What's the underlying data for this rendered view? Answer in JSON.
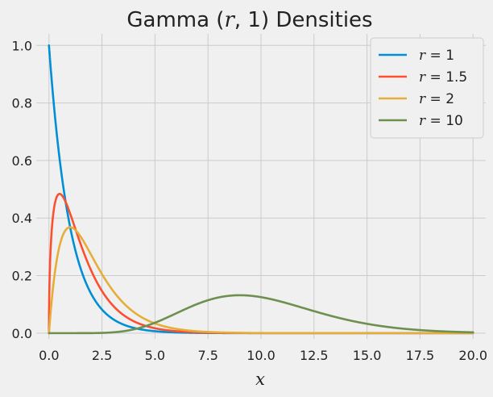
{
  "chart_data": {
    "type": "line",
    "title": "Gamma (r, 1) Densities",
    "title_parts": [
      "Gamma (",
      "r",
      ", 1) Densities"
    ],
    "xlabel": "x",
    "ylabel": "",
    "xlim": [
      -0.6,
      20.6
    ],
    "ylim": [
      -0.02,
      1.04
    ],
    "xticks": [
      0.0,
      2.5,
      5.0,
      7.5,
      10.0,
      12.5,
      15.0,
      17.5,
      20.0
    ],
    "xtick_labels": [
      "0.0",
      "2.5",
      "5.0",
      "7.5",
      "10.0",
      "12.5",
      "15.0",
      "17.5",
      "20.0"
    ],
    "yticks": [
      0.0,
      0.2,
      0.4,
      0.6,
      0.8,
      1.0
    ],
    "ytick_labels": [
      "0.0",
      "0.2",
      "0.4",
      "0.6",
      "0.8",
      "1.0"
    ],
    "grid": true,
    "legend_position": "top-right",
    "series": [
      {
        "name": "r = 1",
        "r_label": "r",
        "eq_label": " = 1",
        "shape": 1,
        "color": "#008fd5",
        "x": [
          0,
          0.25,
          0.5,
          0.75,
          1,
          1.5,
          2,
          2.5,
          3,
          4,
          5,
          6,
          7,
          8,
          10,
          12,
          15,
          20
        ],
        "y": [
          1.0,
          0.779,
          0.607,
          0.472,
          0.368,
          0.223,
          0.135,
          0.082,
          0.05,
          0.018,
          0.007,
          0.002,
          0.001,
          0.0,
          0.0,
          0.0,
          0.0,
          0.0
        ]
      },
      {
        "name": "r = 1.5",
        "r_label": "r",
        "eq_label": " = 1.5",
        "shape": 1.5,
        "color": "#fc4f30",
        "x": [
          0,
          0.02,
          0.05,
          0.1,
          0.2,
          0.3,
          0.5,
          0.75,
          1,
          1.5,
          2,
          2.5,
          3,
          4,
          5,
          6,
          7,
          8,
          10,
          12,
          15,
          20
        ],
        "y": [
          0.0,
          0.157,
          0.24,
          0.325,
          0.413,
          0.458,
          0.484,
          0.463,
          0.415,
          0.309,
          0.216,
          0.145,
          0.094,
          0.041,
          0.017,
          0.007,
          0.003,
          0.001,
          0.0,
          0.0,
          0.0,
          0.0
        ]
      },
      {
        "name": "r = 2",
        "r_label": "r",
        "eq_label": " = 2",
        "shape": 2,
        "color": "#e5ae38",
        "x": [
          0,
          0.1,
          0.25,
          0.5,
          0.75,
          1,
          1.5,
          2,
          2.5,
          3,
          4,
          5,
          6,
          7,
          8,
          10,
          12,
          15,
          20
        ],
        "y": [
          0.0,
          0.09,
          0.195,
          0.303,
          0.354,
          0.368,
          0.335,
          0.271,
          0.205,
          0.149,
          0.073,
          0.034,
          0.015,
          0.006,
          0.003,
          0.0,
          0.0,
          0.0,
          0.0
        ]
      },
      {
        "name": "r = 10",
        "r_label": "r",
        "eq_label": " = 10",
        "shape": 10,
        "color": "#6d904f",
        "x": [
          0,
          1,
          2,
          3,
          4,
          5,
          6,
          7,
          8,
          9,
          10,
          11,
          12,
          13,
          14,
          15,
          16,
          17,
          18,
          19,
          20
        ],
        "y": [
          0.0,
          0.0,
          0.0,
          0.003,
          0.019,
          0.036,
          0.069,
          0.101,
          0.124,
          0.132,
          0.125,
          0.109,
          0.087,
          0.066,
          0.047,
          0.032,
          0.021,
          0.013,
          0.008,
          0.005,
          0.003
        ]
      }
    ]
  }
}
